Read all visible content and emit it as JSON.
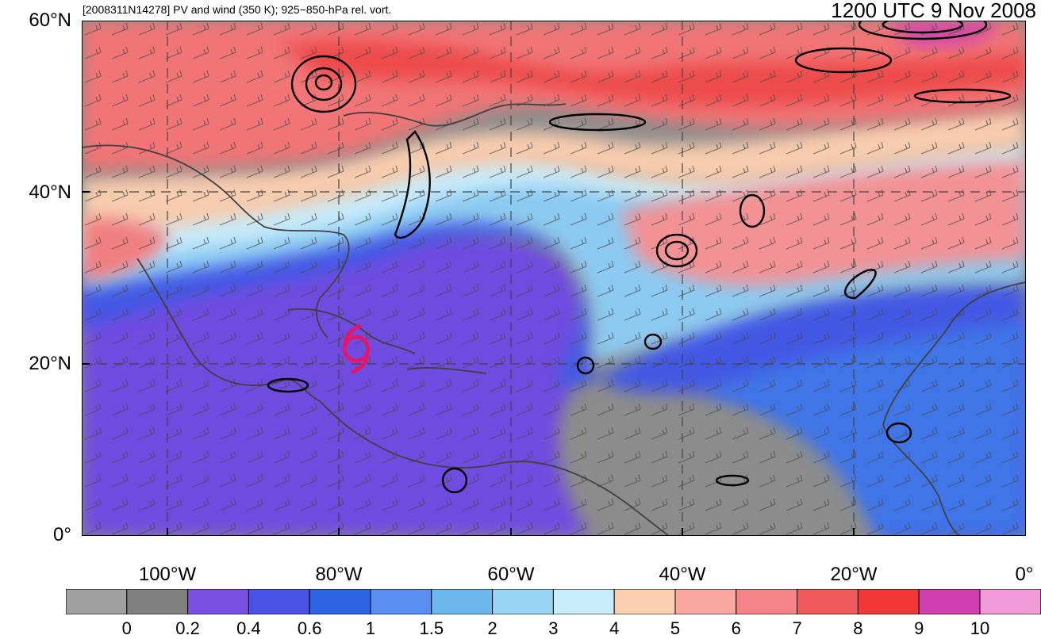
{
  "header": {
    "left_title": "[2008311N14278] PV and wind (350 K); 925−850-hPa rel. vort.",
    "right_title": "1200 UTC 9 Nov 2008"
  },
  "axes": {
    "lat_labels": [
      "60°N",
      "40°N",
      "20°N",
      "0°"
    ],
    "lon_labels": [
      "100°W",
      "80°W",
      "60°W",
      "40°W",
      "20°W",
      "0°"
    ]
  },
  "map": {
    "extent": {
      "lon_min": -110,
      "lon_max": 0,
      "lat_min": 0,
      "lat_max": 60
    },
    "storm_symbol": "tropical-cyclone-symbol",
    "storm_position": {
      "lon": -79,
      "lat": 21
    },
    "storm_color": "#e0186c"
  },
  "colorbar": {
    "tick_labels": [
      "0",
      "0.2",
      "0.4",
      "0.6",
      "1",
      "1.5",
      "2",
      "3",
      "4",
      "5",
      "6",
      "7",
      "8",
      "9",
      "10"
    ],
    "colors": [
      "#a0a0a0",
      "#808080",
      "#7a4ee0",
      "#4a52e6",
      "#2e64e6",
      "#5a8ef0",
      "#6cb8ec",
      "#98d4f4",
      "#c8ecfa",
      "#fad0b0",
      "#f8a8a0",
      "#f48488",
      "#f05a5a",
      "#f03838",
      "#d040b0",
      "#f09ad8"
    ]
  }
}
